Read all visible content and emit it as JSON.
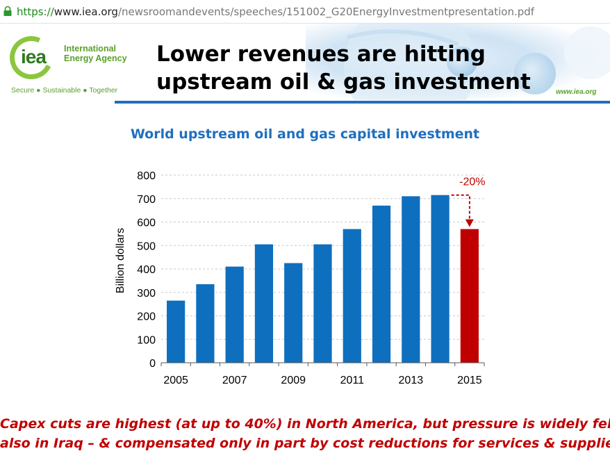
{
  "browser": {
    "url_scheme": "https://",
    "url_host": "www.iea.org",
    "url_path": "/newsroomandevents/speeches/151002_G20EnergyInvestmentpresentation.pdf"
  },
  "slide": {
    "logo_text": "iea",
    "logo_name_line1": "International",
    "logo_name_line2": "Energy Agency",
    "logo_tagline": "Secure ● Sustainable ● Together",
    "title_line1": "Lower revenues are hitting",
    "title_line2": "upstream oil & gas investment",
    "website": "www.iea.org",
    "note_line1": "Capex cuts are highest (at up to 40%) in North America, but pressure is widely felt –",
    "note_line2": "also in Iraq – & compensated only in part by cost reductions for services & supplies"
  },
  "colors": {
    "bar": "#0e6fbe",
    "highlight_bar": "#c00000",
    "title": "#1f6fbf",
    "note": "#c00000"
  },
  "chart_data": {
    "type": "bar",
    "title": "World upstream oil and gas capital investment",
    "xlabel": "",
    "ylabel": "Billion dollars",
    "categories": [
      "2005",
      "2006",
      "2007",
      "2008",
      "2009",
      "2010",
      "2011",
      "2012",
      "2013",
      "2014",
      "2015"
    ],
    "values": [
      265,
      335,
      410,
      505,
      425,
      505,
      570,
      670,
      710,
      715,
      570
    ],
    "x_tick_labels": [
      "2005",
      "2007",
      "2009",
      "2011",
      "2013",
      "2015"
    ],
    "y_ticks": [
      0,
      100,
      200,
      300,
      400,
      500,
      600,
      700,
      800
    ],
    "ylim": [
      0,
      800
    ],
    "grid": true,
    "highlight_index": 10,
    "annotation": "-20%",
    "annotation_from_index": 9,
    "annotation_to_index": 10
  }
}
